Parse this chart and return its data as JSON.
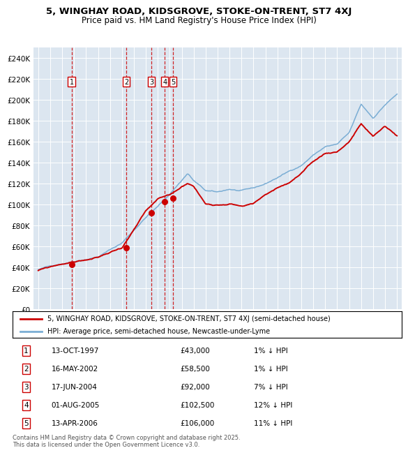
{
  "title": "5, WINGHAY ROAD, KIDSGROVE, STOKE-ON-TRENT, ST7 4XJ",
  "subtitle": "Price paid vs. HM Land Registry's House Price Index (HPI)",
  "background_color": "#dce6f0",
  "red_line_color": "#cc0000",
  "blue_line_color": "#7aadd4",
  "dashed_line_color": "#cc0000",
  "ylim": [
    0,
    250000
  ],
  "ytick_values": [
    0,
    20000,
    40000,
    60000,
    80000,
    100000,
    120000,
    140000,
    160000,
    180000,
    200000,
    220000,
    240000
  ],
  "transactions": [
    {
      "num": 1,
      "date": "13-OCT-1997",
      "price": 43000,
      "pct": "1%",
      "year": 1997.79
    },
    {
      "num": 2,
      "date": "16-MAY-2002",
      "price": 58500,
      "pct": "1%",
      "year": 2002.37
    },
    {
      "num": 3,
      "date": "17-JUN-2004",
      "price": 92000,
      "pct": "7%",
      "year": 2004.46
    },
    {
      "num": 4,
      "date": "01-AUG-2005",
      "price": 102500,
      "pct": "12%",
      "year": 2005.58
    },
    {
      "num": 5,
      "date": "13-APR-2006",
      "price": 106000,
      "pct": "11%",
      "year": 2006.28
    }
  ],
  "legend_line1": "5, WINGHAY ROAD, KIDSGROVE, STOKE-ON-TRENT, ST7 4XJ (semi-detached house)",
  "legend_line2": "HPI: Average price, semi-detached house, Newcastle-under-Lyme",
  "footer": "Contains HM Land Registry data © Crown copyright and database right 2025.\nThis data is licensed under the Open Government Licence v3.0.",
  "xstart": 1995,
  "xend": 2025,
  "blue_key_times": [
    1995,
    1997,
    2000,
    2002,
    2004,
    2005,
    2006,
    2007.5,
    2008,
    2009,
    2010,
    2011,
    2012,
    2013,
    2014,
    2015,
    2016,
    2017,
    2018,
    2019,
    2020,
    2021,
    2022,
    2023,
    2024,
    2025
  ],
  "blue_key_vals": [
    38000,
    44000,
    52000,
    65000,
    90000,
    100000,
    112000,
    132000,
    125000,
    115000,
    113000,
    116000,
    114000,
    116000,
    120000,
    126000,
    132000,
    138000,
    148000,
    156000,
    158000,
    168000,
    195000,
    182000,
    195000,
    205000
  ],
  "red_key_times": [
    1995,
    1997,
    2000,
    2002,
    2004,
    2005,
    2006,
    2007.5,
    2008,
    2009,
    2010,
    2011,
    2012,
    2013,
    2014,
    2015,
    2016,
    2017,
    2018,
    2019,
    2020,
    2021,
    2022,
    2023,
    2024,
    2025
  ],
  "red_key_vals": [
    37000,
    43000,
    49000,
    58500,
    92000,
    102500,
    106000,
    118000,
    115000,
    98000,
    98000,
    100000,
    98000,
    100000,
    108000,
    115000,
    120000,
    128000,
    138000,
    146000,
    148000,
    158000,
    175000,
    162000,
    172000,
    163000
  ]
}
